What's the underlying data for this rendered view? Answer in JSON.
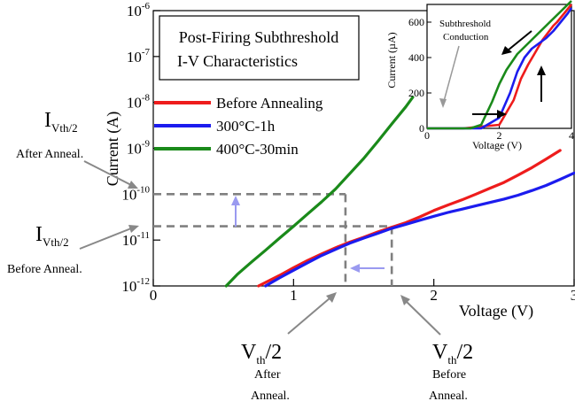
{
  "chart_data": [
    {
      "type": "line",
      "title_lines": [
        "Post-Firing Subthreshold",
        "I-V Characteristics"
      ],
      "xlabel": "Voltage (V)",
      "ylabel": "Current (A)",
      "y_scale": "log",
      "xlim": [
        0,
        3
      ],
      "ylim": [
        1e-12,
        1e-06
      ],
      "x_ticks": [
        {
          "value": 0,
          "label": "0"
        },
        {
          "value": 1,
          "label": "1"
        },
        {
          "value": 2,
          "label": "2"
        },
        {
          "value": 3,
          "label": "3"
        }
      ],
      "y_ticks": [
        {
          "value": 1e-12,
          "base": "10",
          "exp": "-12"
        },
        {
          "value": 1e-11,
          "base": "10",
          "exp": "-11"
        },
        {
          "value": 1e-10,
          "base": "10",
          "exp": "-10"
        },
        {
          "value": 1e-09,
          "base": "10",
          "exp": "-9"
        },
        {
          "value": 1e-08,
          "base": "10",
          "exp": "-8"
        },
        {
          "value": 1e-07,
          "base": "10",
          "exp": "-7"
        },
        {
          "value": 1e-06,
          "base": "10",
          "exp": "-6"
        }
      ],
      "legend_position": "center-right",
      "series": [
        {
          "name": "Before Annealing",
          "color": "#ee1c1c",
          "x": [
            0.75,
            0.9,
            1.0,
            1.1,
            1.2,
            1.3,
            1.4,
            1.5,
            1.6,
            1.7,
            1.8,
            1.9,
            2.0,
            2.1,
            2.2,
            2.3,
            2.4,
            2.5,
            2.6,
            2.7,
            2.8,
            2.9
          ],
          "y": [
            1e-12,
            1.7e-12,
            2.5e-12,
            3.6e-12,
            5e-12,
            6.8e-12,
            9e-12,
            1.15e-11,
            1.5e-11,
            1.9e-11,
            2.4e-11,
            3.2e-11,
            4.4e-11,
            5.8e-11,
            7.5e-11,
            1e-10,
            1.35e-10,
            1.8e-10,
            2.6e-10,
            3.8e-10,
            5.8e-10,
            9e-10
          ]
        },
        {
          "name": "300°C-1h",
          "color": "#1c1cee",
          "x": [
            0.8,
            0.9,
            1.0,
            1.1,
            1.2,
            1.3,
            1.4,
            1.5,
            1.6,
            1.7,
            1.8,
            1.9,
            2.0,
            2.1,
            2.2,
            2.3,
            2.4,
            2.5,
            2.6,
            2.7,
            2.8,
            2.9,
            3.0
          ],
          "y": [
            1e-12,
            1.5e-12,
            2.2e-12,
            3.2e-12,
            4.6e-12,
            6.3e-12,
            8.5e-12,
            1.1e-11,
            1.4e-11,
            1.8e-11,
            2.2e-11,
            2.7e-11,
            3.3e-11,
            4e-11,
            4.7e-11,
            5.6e-11,
            6.6e-11,
            7.8e-11,
            9.5e-11,
            1.2e-10,
            1.55e-10,
            2.1e-10,
            2.9e-10
          ]
        },
        {
          "name": "400°C-30min",
          "color": "#1a8a1a",
          "x": [
            0.52,
            0.6,
            0.7,
            0.8,
            0.9,
            1.0,
            1.1,
            1.2,
            1.3,
            1.4,
            1.5,
            1.6,
            1.7,
            1.8,
            1.85
          ],
          "y": [
            1e-12,
            1.8e-12,
            3.3e-12,
            6e-12,
            1.1e-11,
            2e-11,
            3.7e-11,
            6.8e-11,
            1.3e-10,
            2.8e-10,
            6e-10,
            1.4e-09,
            3.4e-09,
            8e-09,
            1.3e-08
          ]
        }
      ]
    },
    {
      "type": "line",
      "xlabel": "Voltage (V)",
      "ylabel": "Current (µA)",
      "xlim": [
        0,
        4
      ],
      "ylim": [
        0,
        700
      ],
      "x_ticks": [
        {
          "value": 0,
          "label": "0"
        },
        {
          "value": 2,
          "label": "2"
        },
        {
          "value": 4,
          "label": "4"
        }
      ],
      "y_ticks": [
        {
          "value": 0,
          "label": "0"
        },
        {
          "value": 200,
          "label": "200"
        },
        {
          "value": 400,
          "label": "400"
        },
        {
          "value": 600,
          "label": "600"
        }
      ],
      "annotation": [
        "Subthreshold",
        "Conduction"
      ],
      "series": [
        {
          "name": "Before Annealing",
          "color": "#ee1c1c",
          "x": [
            0,
            1.0,
            2.0,
            2.4,
            2.6,
            2.8,
            3.0,
            3.2,
            3.35,
            3.5,
            3.6,
            3.8,
            4.0
          ],
          "y": [
            0,
            0,
            20,
            160,
            280,
            360,
            430,
            500,
            540,
            580,
            600,
            650,
            700
          ]
        },
        {
          "name": "300°C-1h",
          "color": "#1c1cee",
          "x": [
            0,
            1.5,
            2.0,
            2.3,
            2.5,
            2.7,
            2.9,
            3.1,
            3.3,
            3.5,
            3.7,
            3.9,
            4.0
          ],
          "y": [
            0,
            0,
            60,
            200,
            320,
            400,
            450,
            480,
            510,
            550,
            600,
            650,
            680
          ]
        },
        {
          "name": "400°C-30min",
          "color": "#1a8a1a",
          "x": [
            0,
            1.2,
            1.5,
            1.8,
            2.0,
            2.2,
            2.5,
            2.8,
            3.1,
            3.4,
            3.7,
            4.0
          ],
          "y": [
            0,
            0,
            20,
            150,
            250,
            330,
            420,
            480,
            540,
            600,
            660,
            720
          ]
        }
      ]
    }
  ],
  "annotations": {
    "i_after_main": "I",
    "i_after_sub": "Vth/2",
    "i_after_note": "After Anneal.",
    "i_before_main": "I",
    "i_before_sub": "Vth/2",
    "i_before_note": "Before Anneal.",
    "v_after_main": "V",
    "v_after_sub": "th",
    "v_after_tail": "/2",
    "v_after_note_1": "After",
    "v_after_note_2": "Anneal.",
    "v_before_main": "V",
    "v_before_sub": "th",
    "v_before_tail": "/2",
    "v_before_note_1": "Before",
    "v_before_note_2": "Anneal."
  },
  "markers": {
    "after_voltage": 1.37,
    "before_voltage": 1.7,
    "after_current": 1e-10,
    "before_current": 2e-11
  }
}
